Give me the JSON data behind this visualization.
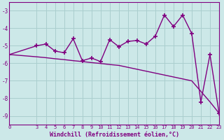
{
  "x_data": [
    0,
    3,
    4,
    5,
    6,
    7,
    8,
    9,
    10,
    11,
    12,
    13,
    14,
    15,
    16,
    17,
    18,
    19,
    20,
    21,
    22,
    23
  ],
  "y_windchill": [
    -5.5,
    -5.0,
    -4.9,
    -5.3,
    -5.4,
    -4.6,
    -5.85,
    -5.7,
    -5.9,
    -4.65,
    -5.05,
    -4.75,
    -4.7,
    -4.9,
    -4.45,
    -3.25,
    -3.9,
    -3.25,
    -4.3,
    -8.2,
    -5.5,
    -8.85
  ],
  "y_trend": [
    -5.5,
    -5.63,
    -5.68,
    -5.74,
    -5.79,
    -5.85,
    -5.9,
    -5.96,
    -6.01,
    -6.07,
    -6.12,
    -6.23,
    -6.34,
    -6.45,
    -6.56,
    -6.67,
    -6.78,
    -6.89,
    -7.0,
    -7.6,
    -8.2,
    -8.85
  ],
  "line_color": "#800080",
  "bg_color": "#cce8e8",
  "grid_color": "#aacece",
  "xlabel": "Windchill (Refroidissement éolien,°C)",
  "xlim": [
    0,
    23
  ],
  "ylim": [
    -9.5,
    -2.5
  ],
  "yticks": [
    -9,
    -8,
    -7,
    -6,
    -5,
    -4,
    -3
  ],
  "xticks": [
    0,
    3,
    4,
    5,
    6,
    7,
    8,
    9,
    10,
    11,
    12,
    13,
    14,
    15,
    16,
    17,
    18,
    19,
    20,
    21,
    22,
    23
  ],
  "marker": "+",
  "marker_size": 4,
  "linewidth": 1.0
}
